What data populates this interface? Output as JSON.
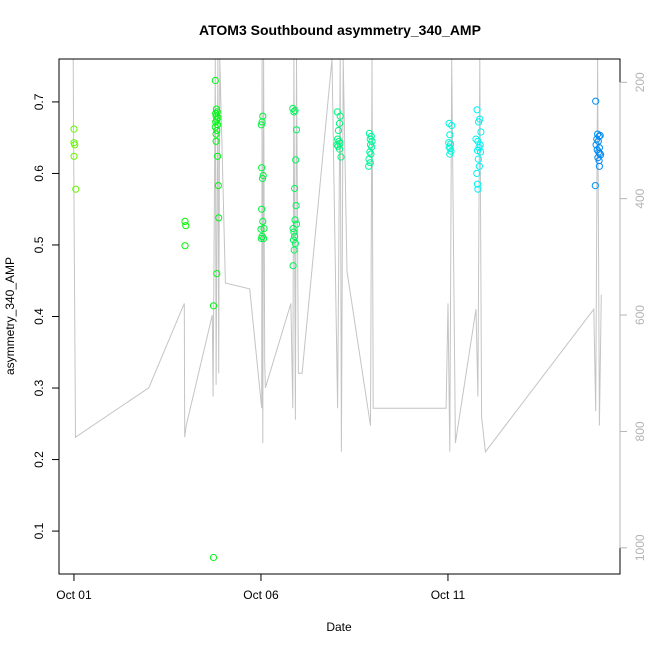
{
  "chart_data": {
    "type": "scatter",
    "title": "ATOM3 Southbound asymmetry_340_AMP",
    "xlabel": "Date",
    "ylabel": "asymmetry_340_AMP",
    "x_ticks": [
      {
        "day": 1,
        "label": "Oct 01"
      },
      {
        "day": 6,
        "label": "Oct 06"
      },
      {
        "day": 11,
        "label": "Oct 11"
      }
    ],
    "y_ticks": [
      0.1,
      0.2,
      0.3,
      0.4,
      0.5,
      0.6,
      0.7
    ],
    "y2_ticks": [
      200,
      400,
      600,
      800,
      1000
    ],
    "xlim": [
      0.6,
      15.6
    ],
    "ylim": [
      0.04,
      0.76
    ],
    "y2lim": [
      1045,
      160
    ],
    "grid": false,
    "colors": {
      "frame": "#000000",
      "trace": "#c4c4c4",
      "right_axis": "#b4b4b4"
    },
    "points": [
      {
        "x": 1.0,
        "y": 0.662
      },
      {
        "x": 1.0,
        "y": 0.643
      },
      {
        "x": 1.02,
        "y": 0.64
      },
      {
        "x": 1.0,
        "y": 0.624
      },
      {
        "x": 1.05,
        "y": 0.578
      },
      {
        "x": 3.97,
        "y": 0.533
      },
      {
        "x": 3.99,
        "y": 0.527
      },
      {
        "x": 3.97,
        "y": 0.499
      },
      {
        "x": 4.73,
        "y": 0.415
      },
      {
        "x": 4.73,
        "y": 0.063
      },
      {
        "x": 4.78,
        "y": 0.73
      },
      {
        "x": 4.79,
        "y": 0.684
      },
      {
        "x": 4.81,
        "y": 0.69
      },
      {
        "x": 4.8,
        "y": 0.68
      },
      {
        "x": 4.82,
        "y": 0.675
      },
      {
        "x": 4.79,
        "y": 0.672
      },
      {
        "x": 4.84,
        "y": 0.668
      },
      {
        "x": 4.78,
        "y": 0.665
      },
      {
        "x": 4.82,
        "y": 0.66
      },
      {
        "x": 4.8,
        "y": 0.655
      },
      {
        "x": 4.83,
        "y": 0.686
      },
      {
        "x": 4.85,
        "y": 0.678
      },
      {
        "x": 4.8,
        "y": 0.645
      },
      {
        "x": 4.84,
        "y": 0.624
      },
      {
        "x": 4.86,
        "y": 0.583
      },
      {
        "x": 4.87,
        "y": 0.538
      },
      {
        "x": 4.82,
        "y": 0.46
      },
      {
        "x": 6.02,
        "y": 0.608
      },
      {
        "x": 6.05,
        "y": 0.68
      },
      {
        "x": 6.03,
        "y": 0.672
      },
      {
        "x": 6.01,
        "y": 0.668
      },
      {
        "x": 6.06,
        "y": 0.597
      },
      {
        "x": 6.04,
        "y": 0.593
      },
      {
        "x": 6.02,
        "y": 0.55
      },
      {
        "x": 6.05,
        "y": 0.533
      },
      {
        "x": 6.08,
        "y": 0.523
      },
      {
        "x": 6.0,
        "y": 0.522
      },
      {
        "x": 6.03,
        "y": 0.512
      },
      {
        "x": 6.01,
        "y": 0.509
      },
      {
        "x": 6.07,
        "y": 0.509
      },
      {
        "x": 6.85,
        "y": 0.691
      },
      {
        "x": 6.88,
        "y": 0.686
      },
      {
        "x": 6.91,
        "y": 0.688
      },
      {
        "x": 6.95,
        "y": 0.661
      },
      {
        "x": 6.93,
        "y": 0.619
      },
      {
        "x": 6.9,
        "y": 0.579
      },
      {
        "x": 6.94,
        "y": 0.555
      },
      {
        "x": 6.91,
        "y": 0.535
      },
      {
        "x": 6.95,
        "y": 0.529
      },
      {
        "x": 6.86,
        "y": 0.523
      },
      {
        "x": 6.88,
        "y": 0.518
      },
      {
        "x": 6.9,
        "y": 0.512
      },
      {
        "x": 6.87,
        "y": 0.507
      },
      {
        "x": 6.92,
        "y": 0.502
      },
      {
        "x": 6.89,
        "y": 0.493
      },
      {
        "x": 6.86,
        "y": 0.471
      },
      {
        "x": 8.04,
        "y": 0.686
      },
      {
        "x": 8.12,
        "y": 0.68
      },
      {
        "x": 8.1,
        "y": 0.67
      },
      {
        "x": 8.07,
        "y": 0.66
      },
      {
        "x": 8.05,
        "y": 0.648
      },
      {
        "x": 8.09,
        "y": 0.645
      },
      {
        "x": 8.03,
        "y": 0.64
      },
      {
        "x": 8.11,
        "y": 0.642
      },
      {
        "x": 8.06,
        "y": 0.638
      },
      {
        "x": 8.1,
        "y": 0.634
      },
      {
        "x": 8.14,
        "y": 0.623
      },
      {
        "x": 8.9,
        "y": 0.656
      },
      {
        "x": 8.95,
        "y": 0.652
      },
      {
        "x": 8.92,
        "y": 0.648
      },
      {
        "x": 8.97,
        "y": 0.645
      },
      {
        "x": 8.93,
        "y": 0.64
      },
      {
        "x": 8.96,
        "y": 0.637
      },
      {
        "x": 8.91,
        "y": 0.63
      },
      {
        "x": 8.94,
        "y": 0.627
      },
      {
        "x": 8.89,
        "y": 0.62
      },
      {
        "x": 8.92,
        "y": 0.615
      },
      {
        "x": 8.88,
        "y": 0.61
      },
      {
        "x": 11.03,
        "y": 0.67
      },
      {
        "x": 11.1,
        "y": 0.667
      },
      {
        "x": 11.05,
        "y": 0.654
      },
      {
        "x": 11.02,
        "y": 0.643
      },
      {
        "x": 11.07,
        "y": 0.641
      },
      {
        "x": 11.03,
        "y": 0.637
      },
      {
        "x": 11.06,
        "y": 0.635
      },
      {
        "x": 11.08,
        "y": 0.631
      },
      {
        "x": 11.05,
        "y": 0.627
      },
      {
        "x": 11.78,
        "y": 0.689
      },
      {
        "x": 11.85,
        "y": 0.676
      },
      {
        "x": 11.82,
        "y": 0.672
      },
      {
        "x": 11.88,
        "y": 0.658
      },
      {
        "x": 11.75,
        "y": 0.648
      },
      {
        "x": 11.8,
        "y": 0.645
      },
      {
        "x": 11.86,
        "y": 0.64
      },
      {
        "x": 11.83,
        "y": 0.636
      },
      {
        "x": 11.79,
        "y": 0.632
      },
      {
        "x": 11.87,
        "y": 0.63
      },
      {
        "x": 11.81,
        "y": 0.62
      },
      {
        "x": 11.84,
        "y": 0.61
      },
      {
        "x": 11.77,
        "y": 0.6
      },
      {
        "x": 11.79,
        "y": 0.585
      },
      {
        "x": 11.8,
        "y": 0.578
      },
      {
        "x": 14.95,
        "y": 0.701
      },
      {
        "x": 15.0,
        "y": 0.655
      },
      {
        "x": 15.04,
        "y": 0.652
      },
      {
        "x": 15.07,
        "y": 0.653
      },
      {
        "x": 14.98,
        "y": 0.648
      },
      {
        "x": 15.02,
        "y": 0.645
      },
      {
        "x": 14.96,
        "y": 0.64
      },
      {
        "x": 15.05,
        "y": 0.636
      },
      {
        "x": 14.99,
        "y": 0.633
      },
      {
        "x": 15.03,
        "y": 0.63
      },
      {
        "x": 15.06,
        "y": 0.628
      },
      {
        "x": 15.08,
        "y": 0.626
      },
      {
        "x": 15.01,
        "y": 0.622
      },
      {
        "x": 15.04,
        "y": 0.618
      },
      {
        "x": 15.05,
        "y": 0.61
      },
      {
        "x": 14.94,
        "y": 0.583
      }
    ],
    "secondary_trace": {
      "description": "grey line series against right axis",
      "x": [
        0.98,
        0.99,
        1.04,
        3.0,
        3.95,
        3.96,
        4.0,
        4.7,
        4.72,
        4.78,
        4.8,
        4.85,
        4.87,
        4.9,
        5.05,
        5.7,
        6.02,
        6.03,
        6.05,
        6.07,
        6.1,
        6.12,
        6.8,
        6.85,
        6.88,
        6.92,
        6.95,
        7.0,
        7.1,
        7.9,
        8.05,
        8.12,
        8.15,
        8.2,
        8.3,
        8.93,
        8.97,
        9.0,
        10.95,
        11.0,
        11.05,
        11.1,
        11.2,
        11.75,
        11.8,
        11.85,
        11.9,
        12.0,
        14.9,
        14.95,
        15.0,
        15.05,
        15.1
      ],
      "y2": [
        160,
        300,
        810,
        725,
        580,
        810,
        790,
        600,
        740,
        160,
        720,
        160,
        700,
        160,
        545,
        555,
        760,
        160,
        820,
        160,
        680,
        725,
        580,
        760,
        160,
        780,
        160,
        700,
        700,
        160,
        760,
        160,
        835,
        160,
        525,
        790,
        160,
        760,
        760,
        580,
        835,
        160,
        820,
        590,
        740,
        160,
        775,
        835,
        590,
        765,
        160,
        790,
        565
      ]
    }
  }
}
